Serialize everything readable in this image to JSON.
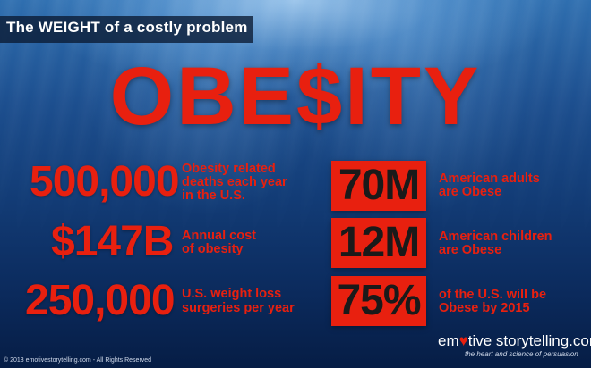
{
  "header": {
    "title": "The WEIGHT of a costly problem"
  },
  "title": "OBE$ITY",
  "left_stats": [
    {
      "value": "500,000",
      "line1": "Obesity related",
      "line2": "deaths each year",
      "line3": "in the U.S."
    },
    {
      "value": "$147B",
      "line1": "Annual cost",
      "line2": "of obesity"
    },
    {
      "value": "250,000",
      "line1": "U.S. weight loss",
      "line2": "surgeries per year"
    }
  ],
  "right_stats": [
    {
      "value": "70M",
      "line1": "American adults",
      "line2": "are Obese"
    },
    {
      "value": "12M",
      "line1": "American children",
      "line2": "are Obese"
    },
    {
      "value": "75%",
      "line1": "of the U.S. will be",
      "line2": "Obese by 2015"
    }
  ],
  "brand": {
    "pre": "em",
    "heart": "♥",
    "post": "tive storytelling.com",
    "tagline": "the heart and science of persuasion"
  },
  "copyright": "© 2013 emotivestorytelling.com - All Rights Reserved",
  "colors": {
    "accent": "#e8200f",
    "header_bg": "#0a1932",
    "water_dark": "#061d45",
    "water_light": "#2f6fb0"
  }
}
